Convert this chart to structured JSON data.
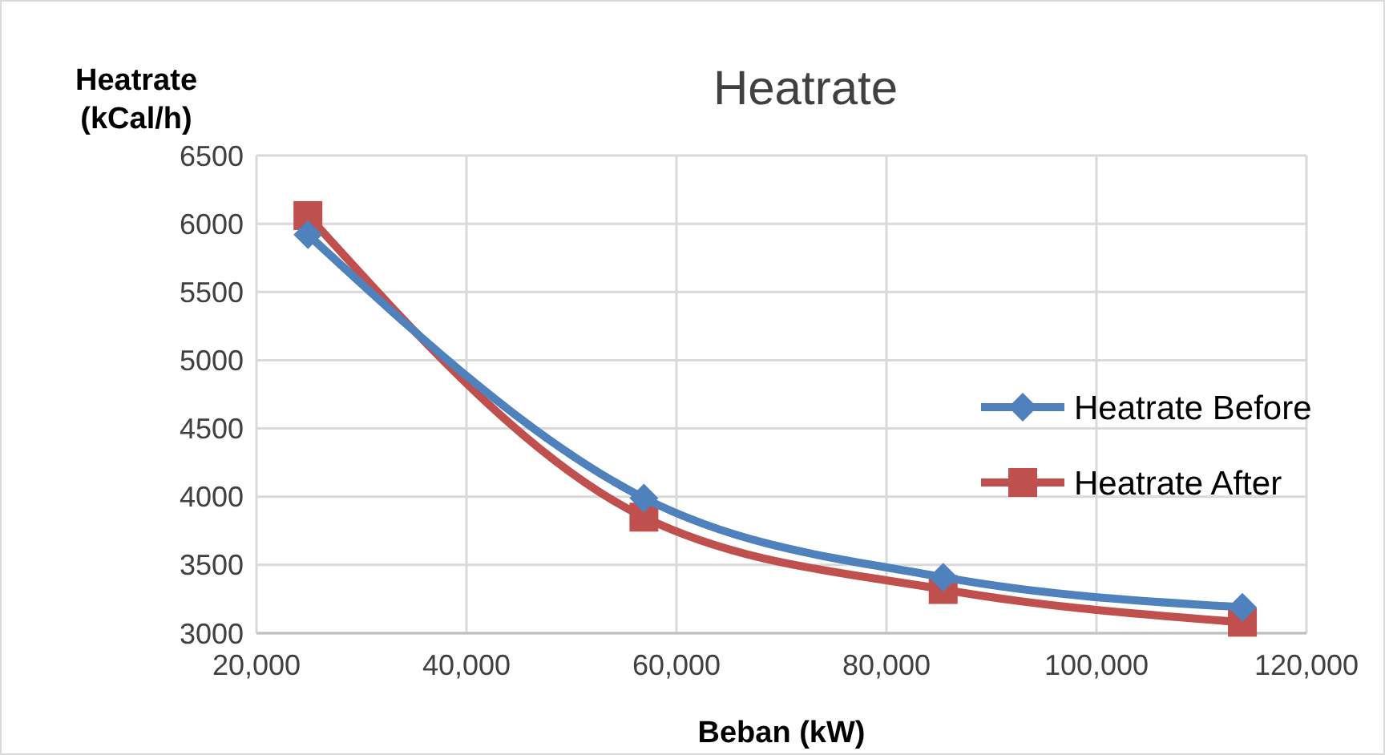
{
  "chart_data": {
    "type": "line",
    "title": "Heatrate",
    "xlabel": "Beban (kW)",
    "ylabel": "Heatrate (kCal/h)",
    "x": [
      24900,
      56900,
      85400,
      113900
    ],
    "series": [
      {
        "name": "Heatrate Before",
        "color": "#4f81bd",
        "values": [
          5920,
          3990,
          3410,
          3190
        ],
        "marker": "diamond"
      },
      {
        "name": "Heatrate After",
        "color": "#c0504d",
        "values": [
          6060,
          3850,
          3320,
          3080
        ],
        "marker": "square"
      }
    ],
    "xlim": [
      20000,
      120000
    ],
    "xticks": [
      {
        "value": 20000,
        "label": "20,000"
      },
      {
        "value": 40000,
        "label": "40,000"
      },
      {
        "value": 60000,
        "label": "60,000"
      },
      {
        "value": 80000,
        "label": "80,000"
      },
      {
        "value": 100000,
        "label": "100,000"
      },
      {
        "value": 120000,
        "label": "120,000"
      }
    ],
    "ylim": [
      3000,
      6500
    ],
    "yticks": [
      3000,
      3500,
      4000,
      4500,
      5000,
      5500,
      6000,
      6500
    ],
    "grid": true,
    "legend": "right",
    "line_style": "solid"
  }
}
